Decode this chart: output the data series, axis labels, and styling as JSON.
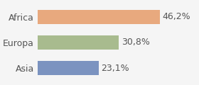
{
  "categories": [
    "Asia",
    "Europa",
    "Africa"
  ],
  "values": [
    23.1,
    30.8,
    46.2
  ],
  "labels": [
    "23,1%",
    "30,8%",
    "46,2%"
  ],
  "bar_colors": [
    "#7b93c0",
    "#a8bb8e",
    "#e8a97e"
  ],
  "background_color": "#f5f5f5",
  "xlim": [
    0,
    60
  ],
  "bar_height": 0.55,
  "label_fontsize": 9,
  "tick_fontsize": 9
}
